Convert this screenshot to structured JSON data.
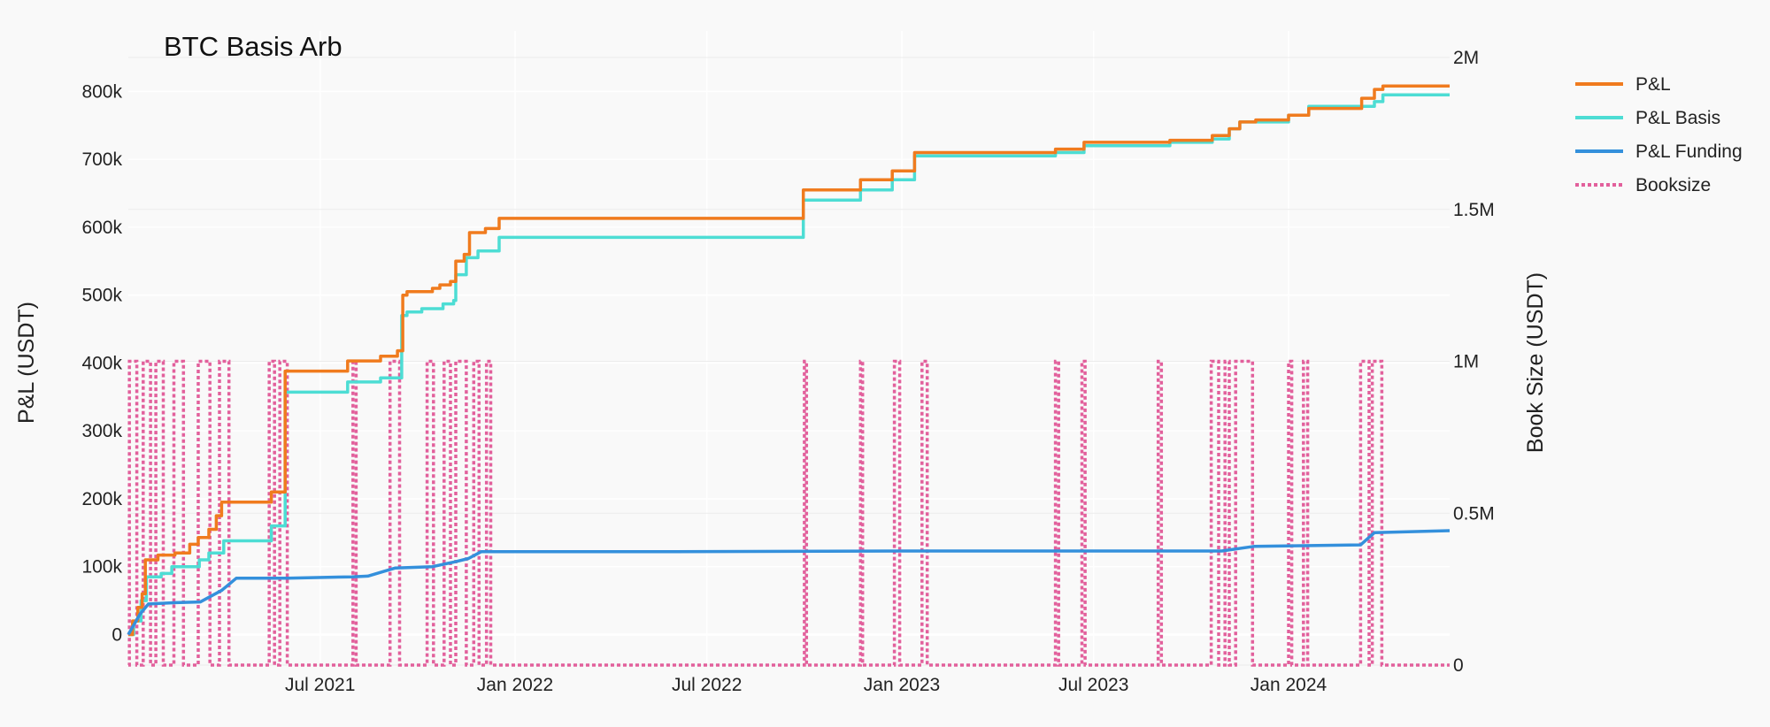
{
  "chart_data": {
    "type": "line",
    "title": "BTC Basis Arb",
    "xlabel": "",
    "ylabel": "P&L (USDT)",
    "y2label": "Book Size (USDT)",
    "xlim": [
      "2021-01-01",
      "2024-06-01"
    ],
    "ylim": [
      -45000,
      850000
    ],
    "y2lim": [
      0,
      2000000
    ],
    "grid": true,
    "legend_position": "right",
    "x_tick_labels": [
      {
        "date": "2021-07-01",
        "label": "Jul 2021"
      },
      {
        "date": "2022-01-01",
        "label": "Jan 2022"
      },
      {
        "date": "2022-07-01",
        "label": "Jul 2022"
      },
      {
        "date": "2023-01-01",
        "label": "Jan 2023"
      },
      {
        "date": "2023-07-01",
        "label": "Jul 2023"
      },
      {
        "date": "2024-01-01",
        "label": "Jan 2024"
      }
    ],
    "y_tick_labels": [
      {
        "value": 0,
        "label": "0"
      },
      {
        "value": 100000,
        "label": "100k"
      },
      {
        "value": 200000,
        "label": "200k"
      },
      {
        "value": 300000,
        "label": "300k"
      },
      {
        "value": 400000,
        "label": "400k"
      },
      {
        "value": 500000,
        "label": "500k"
      },
      {
        "value": 600000,
        "label": "600k"
      },
      {
        "value": 700000,
        "label": "700k"
      },
      {
        "value": 800000,
        "label": "800k"
      }
    ],
    "y2_tick_labels": [
      {
        "value": 0,
        "label": "0"
      },
      {
        "value": 500000,
        "label": "0.5M"
      },
      {
        "value": 1000000,
        "label": "1M"
      },
      {
        "value": 1500000,
        "label": "1.5M"
      },
      {
        "value": 2000000,
        "label": "2M"
      }
    ],
    "series": [
      {
        "name": "P&L",
        "axis": "left",
        "color": "#f07b1e",
        "style": "step",
        "points": [
          [
            "2021-01-01",
            0
          ],
          [
            "2021-01-05",
            20000
          ],
          [
            "2021-01-10",
            40000
          ],
          [
            "2021-01-14",
            60000
          ],
          [
            "2021-01-17",
            110000
          ],
          [
            "2021-01-29",
            117000
          ],
          [
            "2021-02-14",
            120000
          ],
          [
            "2021-02-28",
            133000
          ],
          [
            "2021-03-08",
            143000
          ],
          [
            "2021-03-18",
            155000
          ],
          [
            "2021-03-25",
            175000
          ],
          [
            "2021-03-30",
            195000
          ],
          [
            "2021-05-16",
            210000
          ],
          [
            "2021-05-29",
            388000
          ],
          [
            "2021-07-27",
            403000
          ],
          [
            "2021-08-27",
            410000
          ],
          [
            "2021-09-12",
            418000
          ],
          [
            "2021-09-17",
            500000
          ],
          [
            "2021-09-21",
            505000
          ],
          [
            "2021-10-15",
            510000
          ],
          [
            "2021-10-22",
            515000
          ],
          [
            "2021-11-01",
            520000
          ],
          [
            "2021-11-06",
            550000
          ],
          [
            "2021-11-14",
            560000
          ],
          [
            "2021-11-19",
            592000
          ],
          [
            "2021-12-04",
            598000
          ],
          [
            "2021-12-17",
            613000
          ],
          [
            "2022-09-30",
            655000
          ],
          [
            "2022-11-23",
            670000
          ],
          [
            "2022-12-23",
            683000
          ],
          [
            "2023-01-13",
            710000
          ],
          [
            "2023-05-26",
            715000
          ],
          [
            "2023-06-22",
            725000
          ],
          [
            "2023-09-11",
            728000
          ],
          [
            "2023-10-21",
            735000
          ],
          [
            "2023-11-06",
            745000
          ],
          [
            "2023-11-16",
            755000
          ],
          [
            "2023-12-01",
            758000
          ],
          [
            "2024-01-01",
            765000
          ],
          [
            "2024-01-20",
            775000
          ],
          [
            "2024-03-10",
            790000
          ],
          [
            "2024-03-22",
            803000
          ],
          [
            "2024-03-30",
            808000
          ],
          [
            "2024-06-01",
            808000
          ]
        ]
      },
      {
        "name": "P&L Basis",
        "axis": "left",
        "color": "#4dddd4",
        "style": "step",
        "points": [
          [
            "2021-01-01",
            0
          ],
          [
            "2021-01-06",
            20000
          ],
          [
            "2021-01-13",
            50000
          ],
          [
            "2021-01-18",
            85000
          ],
          [
            "2021-02-01",
            90000
          ],
          [
            "2021-02-11",
            100000
          ],
          [
            "2021-03-09",
            110000
          ],
          [
            "2021-03-18",
            120000
          ],
          [
            "2021-04-01",
            138000
          ],
          [
            "2021-05-16",
            160000
          ],
          [
            "2021-05-29",
            357000
          ],
          [
            "2021-07-27",
            372000
          ],
          [
            "2021-08-27",
            378000
          ],
          [
            "2021-09-16",
            470000
          ],
          [
            "2021-09-21",
            475000
          ],
          [
            "2021-10-05",
            480000
          ],
          [
            "2021-10-25",
            487000
          ],
          [
            "2021-11-04",
            492000
          ],
          [
            "2021-11-06",
            530000
          ],
          [
            "2021-11-16",
            555000
          ],
          [
            "2021-11-27",
            565000
          ],
          [
            "2021-12-17",
            585000
          ],
          [
            "2022-09-30",
            640000
          ],
          [
            "2022-11-23",
            655000
          ],
          [
            "2022-12-23",
            670000
          ],
          [
            "2023-01-13",
            705000
          ],
          [
            "2023-05-26",
            710000
          ],
          [
            "2023-06-22",
            720000
          ],
          [
            "2023-09-11",
            725000
          ],
          [
            "2023-10-21",
            730000
          ],
          [
            "2023-11-06",
            745000
          ],
          [
            "2023-11-16",
            755000
          ],
          [
            "2024-01-01",
            765000
          ],
          [
            "2024-01-20",
            778000
          ],
          [
            "2024-03-22",
            785000
          ],
          [
            "2024-03-30",
            795000
          ],
          [
            "2024-06-01",
            795000
          ]
        ]
      },
      {
        "name": "P&L Funding",
        "axis": "left",
        "color": "#3490dc",
        "style": "linear",
        "points": [
          [
            "2021-01-01",
            0
          ],
          [
            "2021-01-12",
            30000
          ],
          [
            "2021-01-20",
            45000
          ],
          [
            "2021-02-15",
            47000
          ],
          [
            "2021-03-10",
            48000
          ],
          [
            "2021-03-30",
            65000
          ],
          [
            "2021-04-13",
            83000
          ],
          [
            "2021-05-31",
            83000
          ],
          [
            "2021-07-31",
            85000
          ],
          [
            "2021-08-15",
            86000
          ],
          [
            "2021-09-10",
            98000
          ],
          [
            "2021-10-15",
            100000
          ],
          [
            "2021-11-05",
            107000
          ],
          [
            "2021-11-18",
            112000
          ],
          [
            "2021-11-30",
            122000
          ],
          [
            "2022-06-01",
            122000
          ],
          [
            "2022-12-31",
            123000
          ],
          [
            "2023-06-30",
            123000
          ],
          [
            "2023-10-30",
            123000
          ],
          [
            "2023-11-30",
            130000
          ],
          [
            "2024-03-09",
            132000
          ],
          [
            "2024-03-22",
            150000
          ],
          [
            "2024-06-01",
            153000
          ]
        ]
      },
      {
        "name": "Booksize",
        "axis": "right",
        "color": "#e2609c",
        "style": "dotted-step",
        "active_intervals": [
          [
            "2021-01-02",
            "2021-01-09"
          ],
          [
            "2021-01-15",
            "2021-01-22"
          ],
          [
            "2021-01-27",
            "2021-02-03"
          ],
          [
            "2021-02-13",
            "2021-02-22"
          ],
          [
            "2021-03-08",
            "2021-03-19"
          ],
          [
            "2021-03-28",
            "2021-04-06"
          ],
          [
            "2021-05-14",
            "2021-05-19"
          ],
          [
            "2021-05-24",
            "2021-05-31"
          ],
          [
            "2021-08-01",
            "2021-08-04"
          ],
          [
            "2021-09-05",
            "2021-09-14"
          ],
          [
            "2021-10-10",
            "2021-10-16"
          ],
          [
            "2021-10-26",
            "2021-11-01"
          ],
          [
            "2021-11-06",
            "2021-11-16"
          ],
          [
            "2021-11-23",
            "2021-11-28"
          ],
          [
            "2021-12-05",
            "2021-12-09"
          ],
          [
            "2022-10-01",
            "2022-10-03"
          ],
          [
            "2022-11-23",
            "2022-11-25"
          ],
          [
            "2022-12-25",
            "2022-12-30"
          ],
          [
            "2023-01-20",
            "2023-01-25"
          ],
          [
            "2023-05-26",
            "2023-05-29"
          ],
          [
            "2023-06-20",
            "2023-06-23"
          ],
          [
            "2023-08-31",
            "2023-09-03"
          ],
          [
            "2023-10-20",
            "2023-10-27"
          ],
          [
            "2023-11-02",
            "2023-11-06"
          ],
          [
            "2023-11-12",
            "2023-11-28"
          ],
          [
            "2024-01-01",
            "2024-01-04"
          ],
          [
            "2024-01-15",
            "2024-01-19"
          ],
          [
            "2024-03-09",
            "2024-03-17"
          ],
          [
            "2024-03-20",
            "2024-03-29"
          ]
        ],
        "active_value": 1000000,
        "inactive_value": 0
      }
    ]
  }
}
